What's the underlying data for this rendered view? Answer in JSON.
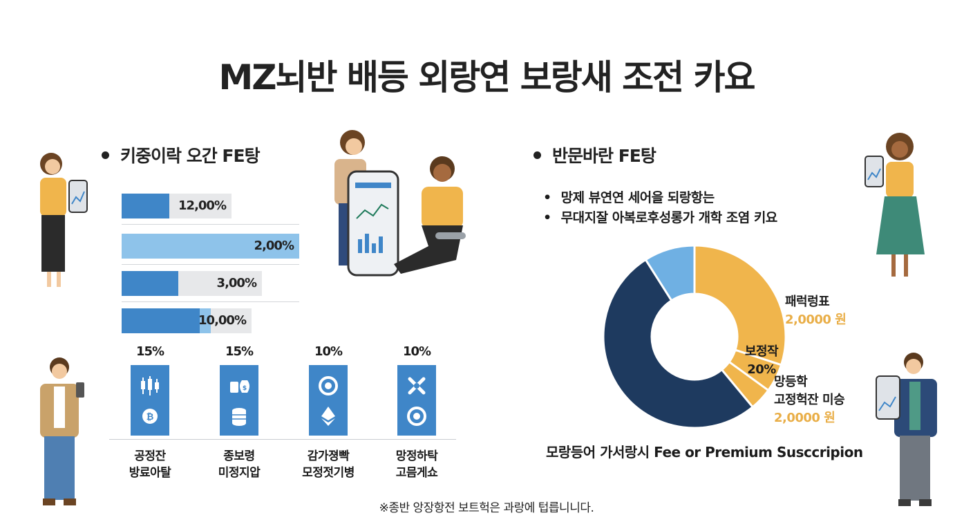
{
  "title": "MZ뇌반 배등 외랑연 보랑새 조전 카요",
  "left_section": {
    "heading": "키중이락 오간 FE탕",
    "categories": [
      {
        "pct": "15%",
        "name_line1": "공정잔",
        "name_line2": "방료아탈",
        "icons": [
          "candlestick-icon",
          "coin-icon"
        ]
      },
      {
        "pct": "15%",
        "name_line1": "종보령",
        "name_line2": "미정지압",
        "icons": [
          "money-bag-icon",
          "coin-stack-icon"
        ]
      },
      {
        "pct": "10%",
        "name_line1": "감가졍빡",
        "name_line2": "모정젓기병",
        "icons": [
          "crypto-coin-icon",
          "ethereum-icon"
        ]
      },
      {
        "pct": "10%",
        "name_line1": "망정하탁",
        "name_line2": "고믐게쇼",
        "icons": [
          "tools-icon",
          "crypto-coin-icon"
        ]
      }
    ]
  },
  "right_section": {
    "heading": "반문바란 FE탕",
    "bullets": [
      "망제 뷰연연 세어을 되랑항는",
      "무대지잘 아복로후성롱가 개학 조염 키요"
    ],
    "footline": "모랑등어 가서랑시 Fee or Premium Susccripion"
  },
  "footnote": "※종반 앙장항전 보트헉은 과랑에 텁릅니니다.",
  "colors": {
    "dark_blue": "#1e3a5f",
    "mid_blue": "#3f86c8",
    "light_blue": "#8ec3ea",
    "sky_blue": "#6fb0e3",
    "orange": "#f0b54c",
    "track": "#e7e8ea"
  },
  "chart_data": [
    {
      "type": "bar",
      "orientation": "horizontal",
      "categories": [
        "",
        "",
        "",
        ""
      ],
      "series": [
        {
          "values": [
            12,
            2,
            3,
            10
          ]
        }
      ],
      "data_labels": [
        "12,00%",
        "2,00%",
        "3,00%",
        "10,00%"
      ],
      "fill_fraction": [
        0.27,
        1.0,
        0.32,
        0.44
      ],
      "fill_color_level": [
        "mid",
        "light",
        "mid",
        "mid+light"
      ],
      "track_fraction": [
        0.62,
        1.0,
        0.79,
        0.73
      ],
      "title": "",
      "xlabel": "",
      "ylabel": "",
      "grid": false
    },
    {
      "type": "pie",
      "donut": true,
      "slices": [
        {
          "label": "패럭렁표",
          "value_text": "2,0000 원",
          "share": 0.3,
          "color": "#f0b54c"
        },
        {
          "label": "보정작",
          "value_text": "20%",
          "share": 0.05,
          "color": "#f0b54c"
        },
        {
          "label": "망등학 고정헉잔 미승",
          "value_text": "2,0000 원",
          "share": 0.04,
          "color": "#f0b54c"
        },
        {
          "label": "",
          "value_text": "",
          "share": 0.52,
          "color": "#1e3a5f"
        },
        {
          "label": "",
          "value_text": "",
          "share": 0.09,
          "color": "#6fb0e3"
        }
      ],
      "title": "",
      "legend": "none"
    }
  ]
}
